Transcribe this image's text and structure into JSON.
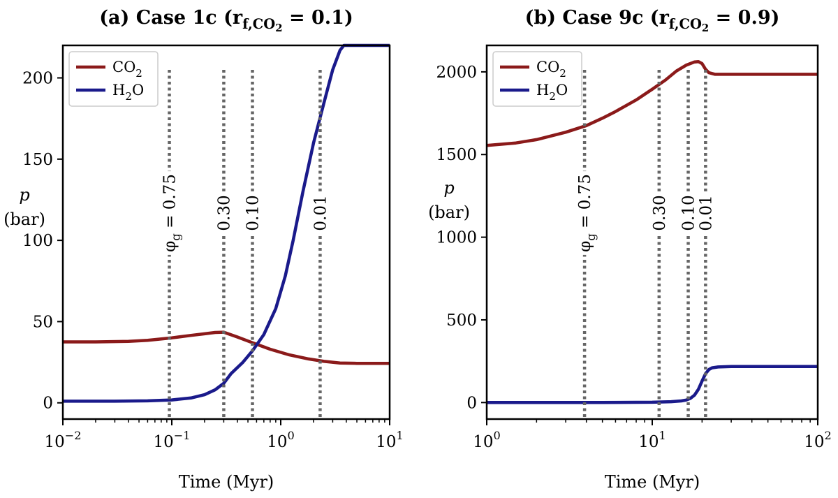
{
  "colors": {
    "co2": "#8b1a1a",
    "h2o": "#1a1a8b",
    "marker": "#666666"
  },
  "chart_data": [
    {
      "type": "line",
      "title": "(a) Case 1c (r",
      "title_sub": "f,CO",
      "title_sub2": "2",
      "title_tail": " = 0.1)",
      "xlabel": "Time (Myr)",
      "ylabel_top": "p",
      "ylabel_bottom": "(bar)",
      "xscale": "log",
      "xlim": [
        0.01,
        10
      ],
      "ylim": [
        -10,
        220
      ],
      "yticks": [
        0,
        50,
        100,
        150,
        200
      ],
      "xticks": [
        {
          "value": 0.01,
          "base": "10",
          "exp": "−2"
        },
        {
          "value": 0.1,
          "base": "10",
          "exp": "−1"
        },
        {
          "value": 1,
          "base": "10",
          "exp": "0"
        },
        {
          "value": 10,
          "base": "10",
          "exp": "1"
        }
      ],
      "legend_position": "top-left",
      "series": [
        {
          "name": "CO",
          "name_sub": "2",
          "color_key": "co2",
          "x": [
            0.01,
            0.02,
            0.04,
            0.06,
            0.1,
            0.15,
            0.2,
            0.25,
            0.3,
            0.4,
            0.55,
            0.8,
            1.2,
            1.8,
            2.5,
            3.5,
            5,
            10
          ],
          "y": [
            37.5,
            37.5,
            37.8,
            38.5,
            40.0,
            41.5,
            42.5,
            43.3,
            43.5,
            40.5,
            37.0,
            33.0,
            29.5,
            27.0,
            25.5,
            24.5,
            24.3,
            24.3
          ]
        },
        {
          "name": "H",
          "name_sub": "2",
          "name_tail": "O",
          "color_key": "h2o",
          "x": [
            0.01,
            0.03,
            0.06,
            0.1,
            0.15,
            0.2,
            0.25,
            0.3,
            0.35,
            0.45,
            0.55,
            0.7,
            0.9,
            1.1,
            1.3,
            1.6,
            2.0,
            2.5,
            3.0,
            3.5,
            3.8,
            5,
            10
          ],
          "y": [
            1,
            1,
            1.2,
            1.8,
            3,
            5,
            8,
            12,
            18,
            25,
            32,
            42,
            58,
            78,
            100,
            130,
            160,
            185,
            205,
            217,
            220,
            220,
            220
          ]
        }
      ],
      "markers": [
        {
          "x": 0.095,
          "label": "φ",
          "label_sub": "g",
          "label_tail": " = 0.75"
        },
        {
          "x": 0.3,
          "label": "0.30"
        },
        {
          "x": 0.55,
          "label": "0.10"
        },
        {
          "x": 2.3,
          "label": "0.01"
        }
      ]
    },
    {
      "type": "line",
      "title": "(b) Case 9c (r",
      "title_sub": "f,CO",
      "title_sub2": "2",
      "title_tail": " = 0.9)",
      "xlabel": "Time (Myr)",
      "ylabel_top": "p",
      "ylabel_bottom": "(bar)",
      "xscale": "log",
      "xlim": [
        1,
        100
      ],
      "ylim": [
        -100,
        2160
      ],
      "yticks": [
        0,
        500,
        1000,
        1500,
        2000
      ],
      "xticks": [
        {
          "value": 1,
          "base": "10",
          "exp": "0"
        },
        {
          "value": 10,
          "base": "10",
          "exp": "1"
        },
        {
          "value": 100,
          "base": "10",
          "exp": "2"
        }
      ],
      "legend_position": "top-left",
      "series": [
        {
          "name": "CO",
          "name_sub": "2",
          "color_key": "co2",
          "x": [
            1,
            1.5,
            2,
            3,
            4,
            5,
            6,
            8,
            10,
            12,
            14,
            16,
            18,
            19,
            20,
            21,
            22,
            24,
            27,
            30,
            50,
            100
          ],
          "y": [
            1555,
            1570,
            1590,
            1635,
            1675,
            1720,
            1760,
            1830,
            1895,
            1950,
            2005,
            2040,
            2060,
            2062,
            2050,
            2015,
            1995,
            1985,
            1985,
            1985,
            1985,
            1985
          ]
        },
        {
          "name": "H",
          "name_sub": "2",
          "name_tail": "O",
          "color_key": "h2o",
          "x": [
            1,
            5,
            10,
            13,
            15,
            16,
            17,
            18,
            19,
            20,
            21,
            22,
            23,
            25,
            30,
            50,
            100
          ],
          "y": [
            0,
            0,
            2,
            5,
            10,
            15,
            25,
            45,
            80,
            130,
            175,
            200,
            210,
            215,
            218,
            218,
            218
          ]
        }
      ],
      "markers": [
        {
          "x": 3.9,
          "label": "φ",
          "label_sub": "g",
          "label_tail": " = 0.75"
        },
        {
          "x": 11,
          "label": "0.30"
        },
        {
          "x": 16.5,
          "label": "0.10"
        },
        {
          "x": 21,
          "label": "0.01"
        }
      ]
    }
  ]
}
